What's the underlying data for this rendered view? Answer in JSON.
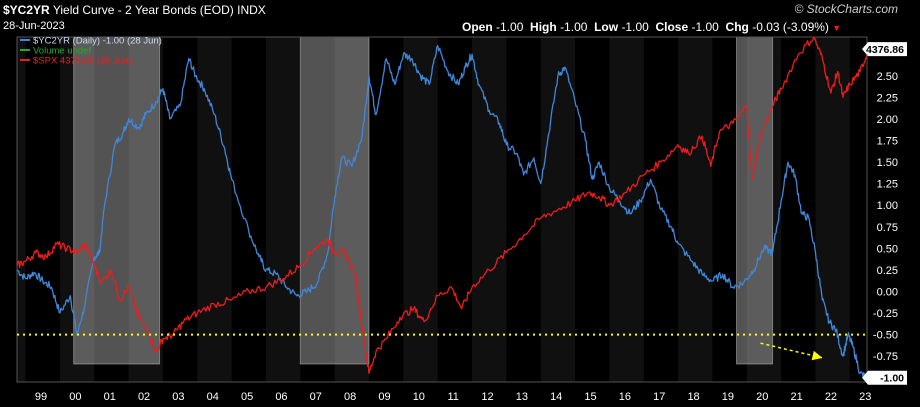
{
  "header": {
    "symbol": "$YC2YR",
    "title": "Yield Curve - 2 Year Bonds (EOD)",
    "exchange": "INDX",
    "date": "28-Jun-2023",
    "open_label": "Open",
    "open_value": "-1.00",
    "high_label": "High",
    "high_value": "-1.00",
    "low_label": "Low",
    "low_value": "-1.00",
    "close_label": "Close",
    "close_value": "-1.00",
    "chg_label": "Chg",
    "chg_value": "-0.03 (-3.09%)",
    "watermark": "© StockCharts.com"
  },
  "colors": {
    "background": "#000000",
    "yc_line": "#3f87d9",
    "spx_line": "#ee1c1c",
    "volume_legend": "#22aa22",
    "zero_reference": "#ffff00",
    "arrow": "#ffff00",
    "recession_band": "#d9d9d9",
    "year_band": "#101010",
    "price_tag": "#ffffff"
  },
  "chart_data": {
    "type": "line",
    "legend": [
      {
        "key": "yc",
        "text": "$YC2YR (Daily) -1.00 (28 Jun)"
      },
      {
        "key": "volume",
        "text": "Volume undef"
      },
      {
        "key": "spx",
        "text": "$SPX 4376.86 (28 Jun)"
      }
    ],
    "x_tick_labels": [
      "99",
      "00",
      "01",
      "02",
      "03",
      "04",
      "05",
      "06",
      "07",
      "08",
      "09",
      "10",
      "11",
      "12",
      "13",
      "14",
      "15",
      "16",
      "17",
      "18",
      "19",
      "20",
      "21",
      "22",
      "23"
    ],
    "x_range": [
      1998.75,
      2023.5
    ],
    "ylim": [
      -1.05,
      2.95
    ],
    "y_ticks": [
      2.5,
      2.25,
      2.0,
      1.75,
      1.5,
      1.25,
      1.0,
      0.75,
      0.5,
      0.25,
      0.0,
      -0.25,
      -0.5,
      -0.75
    ],
    "y_tick_labels": [
      "2.50",
      "2.25",
      "2.00",
      "1.75",
      "1.50",
      "1.25",
      "1.00",
      "0.75",
      "0.50",
      "0.25",
      "0.00",
      "-0.25",
      "-0.50",
      "-0.75"
    ],
    "last_yc_label": "-1.00",
    "last_spx_label": "4376.86",
    "reference_line": {
      "y": -0.5,
      "style": "dotted"
    },
    "arrow": {
      "from": [
        2020.4,
        -0.6
      ],
      "to": [
        2022.2,
        -0.77
      ]
    },
    "recession_bands": [
      [
        2000.4,
        2002.9
      ],
      [
        2007.0,
        2009.0
      ],
      [
        2019.7,
        2020.75
      ]
    ],
    "series": [
      {
        "key": "yc",
        "name": "$YC2YR",
        "points": [
          [
            1998.75,
            0.25
          ],
          [
            1999.0,
            0.15
          ],
          [
            1999.25,
            0.22
          ],
          [
            1999.5,
            0.12
          ],
          [
            1999.75,
            0.05
          ],
          [
            2000.0,
            -0.25
          ],
          [
            2000.3,
            -0.05
          ],
          [
            2000.5,
            -0.5
          ],
          [
            2000.7,
            -0.2
          ],
          [
            2001.0,
            0.4
          ],
          [
            2001.15,
            0.45
          ],
          [
            2001.3,
            1.0
          ],
          [
            2001.6,
            1.7
          ],
          [
            2001.85,
            1.85
          ],
          [
            2002.0,
            2.0
          ],
          [
            2002.3,
            1.9
          ],
          [
            2002.5,
            2.05
          ],
          [
            2002.8,
            2.2
          ],
          [
            2003.0,
            2.35
          ],
          [
            2003.2,
            2.0
          ],
          [
            2003.5,
            2.15
          ],
          [
            2003.75,
            2.7
          ],
          [
            2003.95,
            2.5
          ],
          [
            2004.2,
            2.35
          ],
          [
            2004.5,
            2.05
          ],
          [
            2004.8,
            1.65
          ],
          [
            2005.0,
            1.3
          ],
          [
            2005.5,
            0.7
          ],
          [
            2005.8,
            0.4
          ],
          [
            2006.0,
            0.25
          ],
          [
            2006.3,
            0.2
          ],
          [
            2006.6,
            0.05
          ],
          [
            2006.9,
            -0.05
          ],
          [
            2007.2,
            0.0
          ],
          [
            2007.5,
            0.1
          ],
          [
            2007.8,
            0.45
          ],
          [
            2008.0,
            1.1
          ],
          [
            2008.2,
            1.55
          ],
          [
            2008.5,
            1.45
          ],
          [
            2008.8,
            1.8
          ],
          [
            2009.0,
            2.5
          ],
          [
            2009.2,
            2.05
          ],
          [
            2009.5,
            2.7
          ],
          [
            2009.75,
            2.4
          ],
          [
            2010.0,
            2.75
          ],
          [
            2010.25,
            2.7
          ],
          [
            2010.5,
            2.5
          ],
          [
            2010.75,
            2.4
          ],
          [
            2011.0,
            2.85
          ],
          [
            2011.3,
            2.55
          ],
          [
            2011.6,
            2.4
          ],
          [
            2011.8,
            2.6
          ],
          [
            2012.0,
            2.75
          ],
          [
            2012.2,
            2.4
          ],
          [
            2012.5,
            2.1
          ],
          [
            2012.8,
            1.95
          ],
          [
            2013.0,
            1.7
          ],
          [
            2013.3,
            1.6
          ],
          [
            2013.5,
            1.35
          ],
          [
            2013.8,
            1.55
          ],
          [
            2014.0,
            1.25
          ],
          [
            2014.2,
            1.75
          ],
          [
            2014.5,
            2.5
          ],
          [
            2014.7,
            2.6
          ],
          [
            2015.0,
            2.2
          ],
          [
            2015.3,
            1.75
          ],
          [
            2015.5,
            1.3
          ],
          [
            2015.7,
            1.5
          ],
          [
            2016.0,
            1.2
          ],
          [
            2016.3,
            1.05
          ],
          [
            2016.6,
            0.9
          ],
          [
            2016.9,
            1.05
          ],
          [
            2017.2,
            1.3
          ],
          [
            2017.5,
            0.95
          ],
          [
            2017.8,
            0.75
          ],
          [
            2018.0,
            0.55
          ],
          [
            2018.4,
            0.35
          ],
          [
            2018.7,
            0.2
          ],
          [
            2019.0,
            0.12
          ],
          [
            2019.3,
            0.2
          ],
          [
            2019.6,
            0.05
          ],
          [
            2019.9,
            0.1
          ],
          [
            2020.2,
            0.25
          ],
          [
            2020.5,
            0.5
          ],
          [
            2020.75,
            0.45
          ],
          [
            2021.0,
            1.05
          ],
          [
            2021.2,
            1.5
          ],
          [
            2021.4,
            1.35
          ],
          [
            2021.6,
            0.9
          ],
          [
            2021.8,
            0.85
          ],
          [
            2022.0,
            0.45
          ],
          [
            2022.2,
            -0.1
          ],
          [
            2022.4,
            -0.35
          ],
          [
            2022.6,
            -0.45
          ],
          [
            2022.8,
            -0.75
          ],
          [
            2022.95,
            -0.5
          ],
          [
            2023.1,
            -0.65
          ],
          [
            2023.3,
            -0.95
          ],
          [
            2023.5,
            -1.0
          ]
        ]
      },
      {
        "key": "spx",
        "name": "$SPX",
        "points": [
          [
            1998.75,
            0.3
          ],
          [
            1999.0,
            0.35
          ],
          [
            1999.3,
            0.45
          ],
          [
            1999.6,
            0.4
          ],
          [
            1999.9,
            0.55
          ],
          [
            2000.2,
            0.5
          ],
          [
            2000.5,
            0.45
          ],
          [
            2000.75,
            0.55
          ],
          [
            2001.0,
            0.3
          ],
          [
            2001.2,
            0.1
          ],
          [
            2001.5,
            0.25
          ],
          [
            2001.75,
            -0.1
          ],
          [
            2002.0,
            0.05
          ],
          [
            2002.3,
            -0.3
          ],
          [
            2002.6,
            -0.5
          ],
          [
            2002.8,
            -0.7
          ],
          [
            2003.0,
            -0.55
          ],
          [
            2003.3,
            -0.5
          ],
          [
            2003.6,
            -0.35
          ],
          [
            2004.0,
            -0.25
          ],
          [
            2004.5,
            -0.15
          ],
          [
            2005.0,
            -0.1
          ],
          [
            2005.5,
            0.0
          ],
          [
            2006.0,
            0.05
          ],
          [
            2006.5,
            0.15
          ],
          [
            2007.0,
            0.3
          ],
          [
            2007.4,
            0.5
          ],
          [
            2007.8,
            0.6
          ],
          [
            2008.0,
            0.45
          ],
          [
            2008.3,
            0.45
          ],
          [
            2008.6,
            0.2
          ],
          [
            2008.8,
            -0.4
          ],
          [
            2009.0,
            -0.95
          ],
          [
            2009.2,
            -0.7
          ],
          [
            2009.5,
            -0.55
          ],
          [
            2009.9,
            -0.3
          ],
          [
            2010.3,
            -0.2
          ],
          [
            2010.6,
            -0.35
          ],
          [
            2011.0,
            -0.05
          ],
          [
            2011.4,
            0.05
          ],
          [
            2011.7,
            -0.2
          ],
          [
            2012.0,
            0.05
          ],
          [
            2012.5,
            0.25
          ],
          [
            2013.0,
            0.45
          ],
          [
            2013.5,
            0.65
          ],
          [
            2014.0,
            0.85
          ],
          [
            2014.5,
            0.95
          ],
          [
            2015.0,
            1.05
          ],
          [
            2015.4,
            1.15
          ],
          [
            2015.7,
            1.1
          ],
          [
            2016.0,
            1.0
          ],
          [
            2016.5,
            1.15
          ],
          [
            2017.0,
            1.35
          ],
          [
            2017.5,
            1.5
          ],
          [
            2018.0,
            1.7
          ],
          [
            2018.3,
            1.6
          ],
          [
            2018.7,
            1.8
          ],
          [
            2018.95,
            1.45
          ],
          [
            2019.2,
            1.85
          ],
          [
            2019.6,
            1.95
          ],
          [
            2020.0,
            2.15
          ],
          [
            2020.15,
            1.3
          ],
          [
            2020.4,
            1.8
          ],
          [
            2020.75,
            2.15
          ],
          [
            2021.0,
            2.35
          ],
          [
            2021.5,
            2.75
          ],
          [
            2021.95,
            2.95
          ],
          [
            2022.2,
            2.7
          ],
          [
            2022.45,
            2.3
          ],
          [
            2022.65,
            2.55
          ],
          [
            2022.8,
            2.25
          ],
          [
            2023.0,
            2.4
          ],
          [
            2023.3,
            2.55
          ],
          [
            2023.5,
            2.75
          ]
        ]
      }
    ]
  }
}
